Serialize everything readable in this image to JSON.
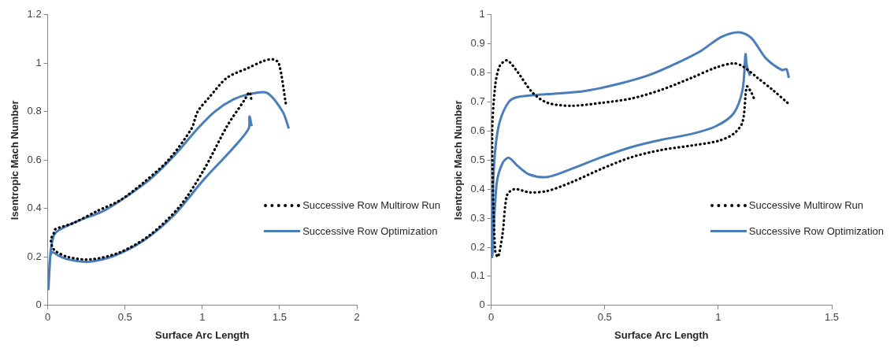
{
  "chart_data": [
    {
      "type": "line",
      "xlabel": "Surface Arc Length",
      "ylabel": "Isentropic Mach Number",
      "xlim": [
        0,
        2
      ],
      "ylim": [
        0,
        1.2
      ],
      "xticks": [
        0,
        0.5,
        1,
        1.5,
        2
      ],
      "yticks": [
        0,
        0.2,
        0.4,
        0.6,
        0.8,
        1,
        1.2
      ],
      "grid": false,
      "legend": "right",
      "marker": "none",
      "series": [
        {
          "name": "Successive Row Multirow Run",
          "color": "#000000",
          "line_style": "dotted",
          "x": [
            1.54,
            1.495,
            1.457,
            1.4,
            1.295,
            1.16,
            1.046,
            0.97,
            0.93,
            0.78,
            0.625,
            0.47,
            0.32,
            0.166,
            0.05,
            0.04,
            0.02,
            0.04,
            0.13,
            0.28,
            0.47,
            0.66,
            0.855,
            1.01,
            1.16,
            1.275,
            1.305,
            1.32
          ],
          "values": [
            0.835,
            1.0,
            1.016,
            1.01,
            0.98,
            0.94,
            0.86,
            0.8,
            0.73,
            0.6,
            0.51,
            0.435,
            0.39,
            0.34,
            0.315,
            0.3,
            0.27,
            0.23,
            0.2,
            0.19,
            0.22,
            0.29,
            0.41,
            0.56,
            0.74,
            0.85,
            0.88,
            0.84
          ]
        },
        {
          "name": "Successive Row Optimization",
          "color": "#4a7ebb",
          "line_style": "solid",
          "x": [
            1.56,
            1.52,
            1.42,
            1.31,
            1.2,
            1.08,
            0.97,
            0.82,
            0.66,
            0.51,
            0.36,
            0.2,
            0.07,
            0.04,
            0.02,
            0.013,
            0.004,
            0.015,
            0.03,
            0.07,
            0.13,
            0.26,
            0.43,
            0.625,
            0.82,
            1.01,
            1.2,
            1.3,
            1.305,
            1.32
          ],
          "values": [
            0.73,
            0.8,
            0.877,
            0.873,
            0.85,
            0.8,
            0.73,
            0.62,
            0.52,
            0.45,
            0.39,
            0.35,
            0.31,
            0.29,
            0.23,
            0.17,
            0.067,
            0.2,
            0.22,
            0.205,
            0.19,
            0.18,
            0.205,
            0.27,
            0.375,
            0.52,
            0.65,
            0.73,
            0.78,
            0.74
          ]
        }
      ]
    },
    {
      "type": "line",
      "xlabel": "Surface Arc Length",
      "ylabel": "Isentropic Mach Number",
      "xlim": [
        0,
        1.5
      ],
      "ylim": [
        0,
        1
      ],
      "xticks": [
        0,
        0.5,
        1,
        1.5
      ],
      "yticks": [
        0,
        0.1,
        0.2,
        0.3,
        0.4,
        0.5,
        0.6,
        0.7,
        0.8,
        0.9,
        1
      ],
      "grid": false,
      "legend": "right",
      "marker": "none",
      "series": [
        {
          "name": "Successive Multirow Run",
          "color": "#000000",
          "line_style": "dotted",
          "x": [
            1.305,
            1.239,
            1.173,
            1.107,
            1.067,
            0.988,
            0.882,
            0.75,
            0.618,
            0.486,
            0.354,
            0.248,
            0.182,
            0.116,
            0.07,
            0.037,
            0.017,
            0.004,
            0.017,
            0.03,
            0.05,
            0.07,
            0.103,
            0.169,
            0.248,
            0.354,
            0.486,
            0.618,
            0.75,
            0.882,
            1.0,
            1.067,
            1.107,
            1.126,
            1.146,
            1.16
          ],
          "values": [
            0.697,
            0.742,
            0.783,
            0.823,
            0.833,
            0.818,
            0.783,
            0.742,
            0.712,
            0.697,
            0.687,
            0.697,
            0.732,
            0.803,
            0.843,
            0.823,
            0.753,
            0.58,
            0.19,
            0.167,
            0.247,
            0.38,
            0.4,
            0.389,
            0.394,
            0.424,
            0.47,
            0.51,
            0.535,
            0.55,
            0.566,
            0.59,
            0.631,
            0.753,
            0.732,
            0.707
          ]
        },
        {
          "name": "Successive Row Optimization",
          "color": "#4a7ebb",
          "line_style": "solid",
          "x": [
            1.311,
            1.3,
            1.28,
            1.21,
            1.146,
            1.093,
            1.014,
            0.92,
            0.816,
            0.697,
            0.565,
            0.407,
            0.248,
            0.116,
            0.077,
            0.037,
            0.017,
            0.007,
            0.004,
            0.024,
            0.05,
            0.077,
            0.116,
            0.169,
            0.248,
            0.354,
            0.486,
            0.618,
            0.75,
            0.882,
            0.988,
            1.067,
            1.107,
            1.12,
            1.126,
            1.14
          ],
          "values": [
            0.783,
            0.813,
            0.81,
            0.85,
            0.92,
            0.94,
            0.924,
            0.874,
            0.833,
            0.793,
            0.763,
            0.737,
            0.727,
            0.717,
            0.7,
            0.631,
            0.53,
            0.38,
            0.167,
            0.42,
            0.49,
            0.508,
            0.48,
            0.45,
            0.442,
            0.47,
            0.51,
            0.545,
            0.57,
            0.59,
            0.616,
            0.66,
            0.742,
            0.864,
            0.823,
            0.79
          ]
        }
      ]
    }
  ]
}
